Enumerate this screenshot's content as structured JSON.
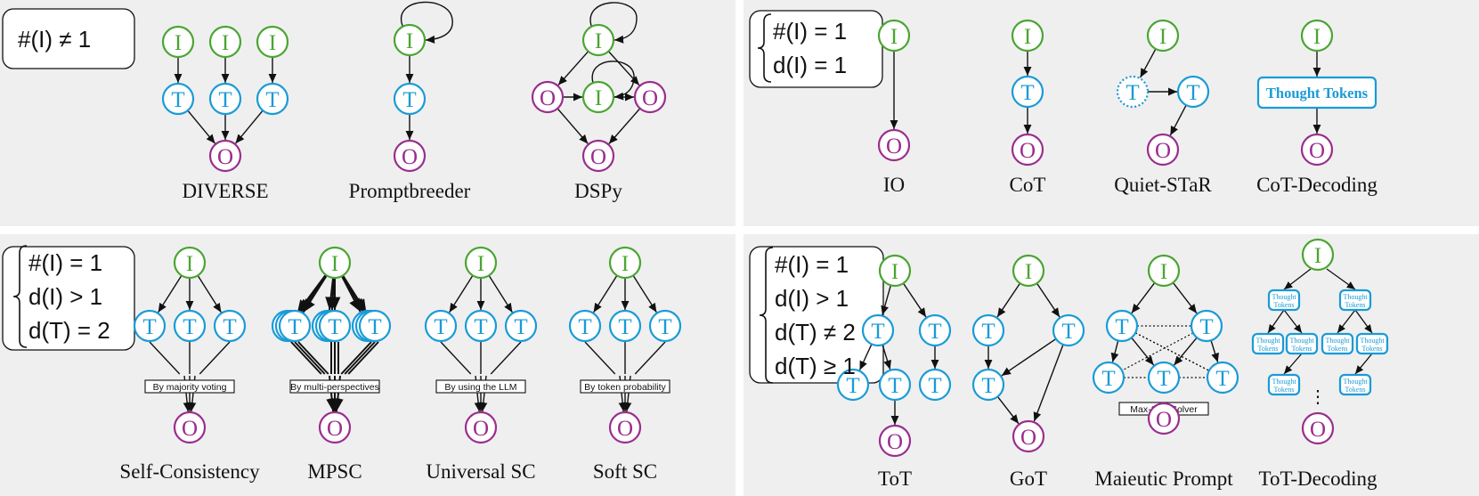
{
  "colors": {
    "panel_bg": "#efefef",
    "input": "#4aa532",
    "thought": "#1a9bd6",
    "output": "#9a2e8e",
    "edge": "#111111"
  },
  "node_letters": {
    "input": "I",
    "thought": "T",
    "output": "O"
  },
  "panels": {
    "multi_input": {
      "condition_lines": [
        "#(I) ≠ 1"
      ],
      "labels": [
        "DIVERSE",
        "Promptbreeder",
        "DSPy"
      ]
    },
    "single_path": {
      "condition_lines": [
        "#(I) = 1",
        "d(I) = 1"
      ],
      "labels": [
        "IO",
        "CoT",
        "Quiet-STaR",
        "CoT-Decoding"
      ],
      "thought_tokens_label": "Thought Tokens"
    },
    "parallel_paths": {
      "condition_lines": [
        "#(I) = 1",
        "d(I) > 1",
        "d(T) = 2"
      ],
      "labels": [
        "Self-Consistency",
        "MPSC",
        "Universal SC",
        "Soft SC"
      ],
      "aggregators": [
        "By majority voting",
        "By multi-perspectives",
        "By using the LLM",
        "By token probability"
      ]
    },
    "graph_paths": {
      "condition_lines": [
        "#(I) = 1",
        "d(I) > 1",
        "d(T) ≠ 2",
        "d(T) ≥ 1"
      ],
      "labels": [
        "ToT",
        "GoT",
        "Maieutic Prompt",
        "ToT-Decoding"
      ],
      "solver_label": "Max-SAT Solver",
      "thought_tokens_label": "Thought Tokens",
      "ellipsis": "⋮"
    }
  }
}
